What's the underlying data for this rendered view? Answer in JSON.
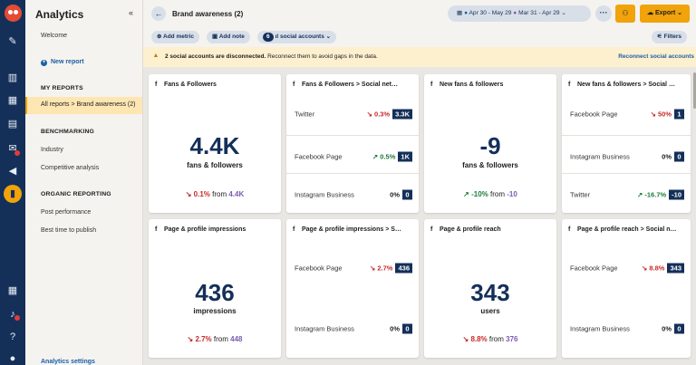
{
  "sidebar": {
    "title": "Analytics",
    "welcome": "Welcome",
    "new_report": "New report",
    "my_reports_heading": "MY REPORTS",
    "selected_report": "All reports > Brand awareness (2)",
    "benchmarking_heading": "BENCHMARKING",
    "industry": "Industry",
    "competitive": "Competitive analysis",
    "organic_heading": "ORGANIC REPORTING",
    "post_performance": "Post performance",
    "best_time": "Best time to publish",
    "settings": "Analytics settings"
  },
  "header": {
    "title": "Brand awareness (2)",
    "range_current": "Apr 30 - May 29",
    "range_previous": "Mar 31 - Apr 29",
    "more": "···",
    "export": "Export"
  },
  "toolbar": {
    "add_metric": "Add metric",
    "add_note": "Add note",
    "accounts_count": "6",
    "accounts_label": "social accounts",
    "filters": "Filters"
  },
  "banner": {
    "bold": "2 social accounts are disconnected.",
    "rest": " Reconnect them to avoid gaps in the data.",
    "action": "Reconnect social accounts"
  },
  "cards": {
    "c1": {
      "title": "Fans & Followers",
      "value": "4.4K",
      "label": "fans & followers",
      "change": "0.1%",
      "from_word": " from ",
      "prev": "4.4K"
    },
    "c2": {
      "title": "Fans & Followers > Social net…",
      "rows": [
        {
          "name": "Twitter",
          "change": "0.3%",
          "value": "3.3K"
        },
        {
          "name": "Facebook Page",
          "change": "0.5%",
          "value": "1K"
        },
        {
          "name": "Instagram Business",
          "change": "0%",
          "value": "0"
        }
      ]
    },
    "c3": {
      "title": "New fans & followers",
      "value": "-9",
      "label": "fans & followers",
      "change": "-10%",
      "from_word": " from ",
      "prev": "-10"
    },
    "c4": {
      "title": "New fans & followers > Social …",
      "rows": [
        {
          "name": "Facebook Page",
          "change": "50%",
          "value": "1"
        },
        {
          "name": "Instagram Business",
          "change": "0%",
          "value": "0"
        },
        {
          "name": "Twitter",
          "change": "-16.7%",
          "value": "-10"
        }
      ]
    },
    "c5": {
      "title": "Page & profile impressions",
      "value": "436",
      "label": "impressions",
      "change": "2.7%",
      "from_word": " from ",
      "prev": "448"
    },
    "c6": {
      "title": "Page & profile impressions > S…",
      "rows": [
        {
          "name": "Facebook Page",
          "change": "2.7%",
          "value": "436"
        },
        {
          "name": "Instagram Business",
          "change": "0%",
          "value": "0"
        }
      ]
    },
    "c7": {
      "title": "Page & profile reach",
      "value": "343",
      "label": "users",
      "change": "8.8%",
      "from_word": " from ",
      "prev": "376"
    },
    "c8": {
      "title": "Page & profile reach > Social n…",
      "rows": [
        {
          "name": "Facebook Page",
          "change": "8.8%",
          "value": "343"
        },
        {
          "name": "Instagram Business",
          "change": "0%",
          "value": "0"
        }
      ]
    }
  },
  "icons": {
    "down_arrow": "↘",
    "up_arrow": "↗",
    "facebook": "f"
  },
  "colors": {
    "navy": "#143059",
    "accent": "#f0a30a",
    "negative": "#c72828",
    "positive": "#1e7a3a",
    "previous": "#7b5bb5"
  }
}
